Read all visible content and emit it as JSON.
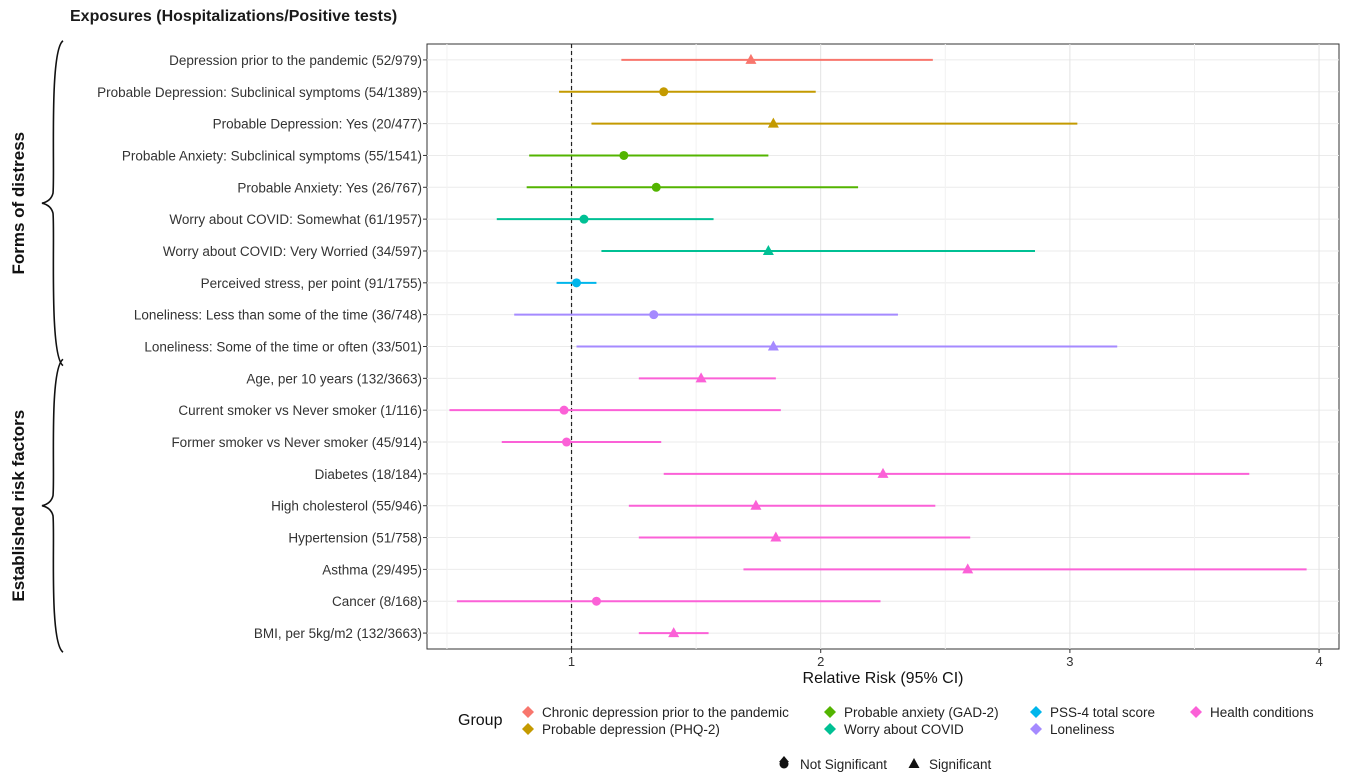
{
  "header": {
    "title": "Exposures (Hospitalizations/Positive tests)"
  },
  "chart_data": {
    "type": "forest",
    "xlabel": "Relative Risk (95% CI)",
    "xlim": [
      0.42,
      4.08
    ],
    "xticks": [
      "1",
      "2",
      "3",
      "4"
    ],
    "reference_line": 1,
    "groups": [
      {
        "label": "Forms of distress",
        "rows": [
          0,
          9
        ]
      },
      {
        "label": "Established risk factors",
        "rows": [
          10,
          18
        ]
      }
    ],
    "rows": [
      {
        "label": "Depression prior to the pandemic (52/979)",
        "est": 1.72,
        "lo": 1.2,
        "hi": 2.45,
        "group": "Chronic depression prior to the pandemic",
        "significant": true
      },
      {
        "label": "Probable Depression: Subclinical symptoms (54/1389)",
        "est": 1.37,
        "lo": 0.95,
        "hi": 1.98,
        "group": "Probable depression (PHQ-2)",
        "significant": false
      },
      {
        "label": "Probable Depression: Yes (20/477)",
        "est": 1.81,
        "lo": 1.08,
        "hi": 3.03,
        "group": "Probable depression (PHQ-2)",
        "significant": true
      },
      {
        "label": "Probable Anxiety: Subclinical symptoms (55/1541)",
        "est": 1.21,
        "lo": 0.83,
        "hi": 1.79,
        "group": "Probable anxiety (GAD-2)",
        "significant": false
      },
      {
        "label": "Probable Anxiety: Yes (26/767)",
        "est": 1.34,
        "lo": 0.82,
        "hi": 2.15,
        "group": "Probable anxiety (GAD-2)",
        "significant": false
      },
      {
        "label": "Worry about COVID: Somewhat (61/1957)",
        "est": 1.05,
        "lo": 0.7,
        "hi": 1.57,
        "group": "Worry about COVID",
        "significant": false
      },
      {
        "label": "Worry about COVID: Very Worried (34/597)",
        "est": 1.79,
        "lo": 1.12,
        "hi": 2.86,
        "group": "Worry about COVID",
        "significant": true
      },
      {
        "label": "Perceived stress, per point (91/1755)",
        "est": 1.02,
        "lo": 0.94,
        "hi": 1.1,
        "group": "PSS-4 total score",
        "significant": false
      },
      {
        "label": "Loneliness: Less than some of the time (36/748)",
        "est": 1.33,
        "lo": 0.77,
        "hi": 2.31,
        "group": "Loneliness",
        "significant": false
      },
      {
        "label": "Loneliness: Some of the time or often (33/501)",
        "est": 1.81,
        "lo": 1.02,
        "hi": 3.19,
        "group": "Loneliness",
        "significant": true
      },
      {
        "label": "Age, per 10 years (132/3663)",
        "est": 1.52,
        "lo": 1.27,
        "hi": 1.82,
        "group": "Health conditions",
        "significant": true
      },
      {
        "label": "Current smoker vs Never smoker (1/116)",
        "est": 0.97,
        "lo": 0.51,
        "hi": 1.84,
        "group": "Health conditions",
        "significant": false
      },
      {
        "label": "Former smoker vs Never smoker (45/914)",
        "est": 0.98,
        "lo": 0.72,
        "hi": 1.36,
        "group": "Health conditions",
        "significant": false
      },
      {
        "label": "Diabetes (18/184)",
        "est": 2.25,
        "lo": 1.37,
        "hi": 3.72,
        "group": "Health conditions",
        "significant": true
      },
      {
        "label": "High cholesterol (55/946)",
        "est": 1.74,
        "lo": 1.23,
        "hi": 2.46,
        "group": "Health conditions",
        "significant": true
      },
      {
        "label": "Hypertension (51/758)",
        "est": 1.82,
        "lo": 1.27,
        "hi": 2.6,
        "group": "Health conditions",
        "significant": true
      },
      {
        "label": "Asthma (29/495)",
        "est": 2.59,
        "lo": 1.69,
        "hi": 3.95,
        "group": "Health conditions",
        "significant": true
      },
      {
        "label": "Cancer (8/168)",
        "est": 1.1,
        "lo": 0.54,
        "hi": 2.24,
        "group": "Health conditions",
        "significant": false
      },
      {
        "label": "BMI, per 5kg/m2 (132/3663)",
        "est": 1.41,
        "lo": 1.27,
        "hi": 1.55,
        "group": "Health conditions",
        "significant": true
      }
    ],
    "legend": {
      "title": "Group",
      "items": [
        {
          "name": "Chronic depression prior to the pandemic",
          "color": "#F8766D"
        },
        {
          "name": "Probable depression (PHQ-2)",
          "color": "#C49A00"
        },
        {
          "name": "Probable anxiety (GAD-2)",
          "color": "#53B400"
        },
        {
          "name": "Worry about COVID",
          "color": "#00C094"
        },
        {
          "name": "PSS-4 total score",
          "color": "#00B6EB"
        },
        {
          "name": "Loneliness",
          "color": "#A58AFF"
        },
        {
          "name": "Health conditions",
          "color": "#FB61D7"
        }
      ],
      "shape_items": [
        {
          "name": "Not Significant",
          "shape": "circle"
        },
        {
          "name": "Significant",
          "shape": "triangle"
        }
      ]
    }
  }
}
